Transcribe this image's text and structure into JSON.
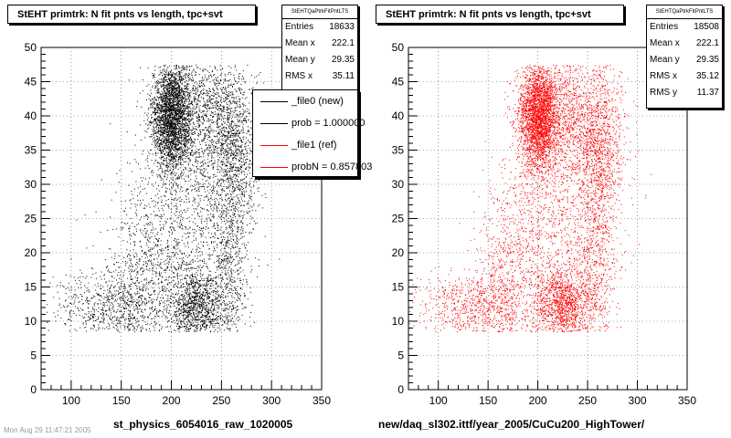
{
  "chart_data": [
    {
      "type": "scatter",
      "title": "StEHT primtrk: N fit pnts vs length, tpc+svt",
      "xlabel": "st_physics_6054016_raw_1020005",
      "ylabel": "",
      "xlim": [
        70,
        350
      ],
      "ylim": [
        0,
        50
      ],
      "x_ticks": [
        100,
        150,
        200,
        250,
        300,
        350
      ],
      "y_ticks": [
        0,
        5,
        10,
        15,
        20,
        25,
        30,
        35,
        40,
        45,
        50
      ],
      "grid": true,
      "point_color": "#000000",
      "stats": {
        "header": "StEHTQaPtrkFitPntLTS",
        "rows": [
          {
            "label": "Entries",
            "value": "18633"
          },
          {
            "label": "Mean x",
            "value": "222.1"
          },
          {
            "label": "Mean y",
            "value": "29.35"
          },
          {
            "label": "RMS x",
            "value": "35.11"
          }
        ]
      },
      "legend": {
        "entries": [
          {
            "label": "_file0 (new)",
            "color": "#000000"
          },
          {
            "label": "prob = 1.000000",
            "color": "#000000"
          },
          {
            "label": "_file1 (ref)",
            "color": "#ff0000"
          },
          {
            "label": "probN = 0.857803",
            "color": "#ff0000"
          }
        ]
      },
      "clusters": [
        {
          "x": 200,
          "y": 40,
          "sx": 10,
          "sy": 4,
          "n": 2800
        },
        {
          "x": 232,
          "y": 40,
          "sx": 22,
          "sy": 5,
          "n": 1300
        },
        {
          "x": 262,
          "y": 35,
          "sx": 12,
          "sy": 6,
          "n": 900
        },
        {
          "x": 225,
          "y": 12,
          "sx": 14,
          "sy": 3,
          "n": 1300
        },
        {
          "x": 258,
          "y": 18,
          "sx": 10,
          "sy": 8,
          "n": 650
        },
        {
          "x": 215,
          "y": 24,
          "sx": 30,
          "sy": 7,
          "n": 850
        },
        {
          "x": 180,
          "y": 18,
          "sx": 20,
          "sy": 7,
          "n": 500
        },
        {
          "x": 130,
          "y": 12,
          "sx": 25,
          "sy": 2.5,
          "n": 550
        },
        {
          "x": 160,
          "y": 13,
          "sx": 15,
          "sy": 4,
          "n": 350
        }
      ]
    },
    {
      "type": "scatter",
      "title": "StEHT primtrk: N fit pnts vs length, tpc+svt",
      "xlabel": "new/daq_sl302.ittf/year_2005/CuCu200_HighTower/",
      "ylabel": "",
      "xlim": [
        70,
        350
      ],
      "ylim": [
        0,
        50
      ],
      "x_ticks": [
        100,
        150,
        200,
        250,
        300,
        350
      ],
      "y_ticks": [
        0,
        5,
        10,
        15,
        20,
        25,
        30,
        35,
        40,
        45,
        50
      ],
      "grid": true,
      "point_color": "#ff0000",
      "stats": {
        "header": "StEHTQaPtrkFitPntLTS",
        "rows": [
          {
            "label": "Entries",
            "value": "18508"
          },
          {
            "label": "Mean x",
            "value": "222.1"
          },
          {
            "label": "Mean y",
            "value": "29.35"
          },
          {
            "label": "RMS x",
            "value": "35.12"
          },
          {
            "label": "RMS y",
            "value": "11.37"
          }
        ]
      },
      "clusters": [
        {
          "x": 200,
          "y": 40,
          "sx": 10,
          "sy": 4,
          "n": 2800
        },
        {
          "x": 232,
          "y": 40,
          "sx": 22,
          "sy": 5,
          "n": 1300
        },
        {
          "x": 262,
          "y": 35,
          "sx": 12,
          "sy": 6,
          "n": 900
        },
        {
          "x": 225,
          "y": 12,
          "sx": 14,
          "sy": 3,
          "n": 1300
        },
        {
          "x": 258,
          "y": 18,
          "sx": 10,
          "sy": 8,
          "n": 650
        },
        {
          "x": 215,
          "y": 24,
          "sx": 30,
          "sy": 7,
          "n": 850
        },
        {
          "x": 180,
          "y": 18,
          "sx": 20,
          "sy": 7,
          "n": 500
        },
        {
          "x": 130,
          "y": 12,
          "sx": 25,
          "sy": 2.5,
          "n": 550
        },
        {
          "x": 160,
          "y": 13,
          "sx": 15,
          "sy": 4,
          "n": 350
        }
      ]
    }
  ],
  "footer": "Mon Aug 29 11:47:21 2005"
}
